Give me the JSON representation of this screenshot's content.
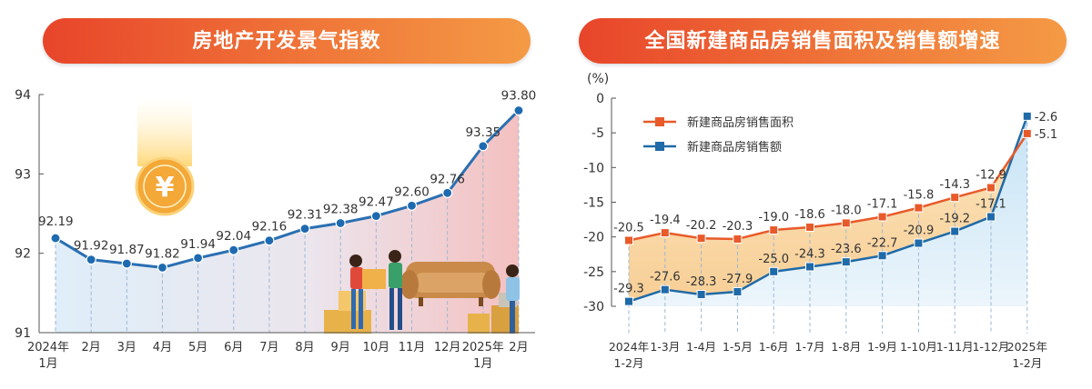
{
  "chart_data": [
    {
      "type": "line",
      "title": "房地产开发景气指数",
      "ylim": [
        91,
        94
      ],
      "yticks": [
        "91",
        "92",
        "93",
        "94"
      ],
      "categories": [
        [
          "2024年",
          "1月"
        ],
        [
          "2月"
        ],
        [
          "3月"
        ],
        [
          "4月"
        ],
        [
          "5月"
        ],
        [
          "6月"
        ],
        [
          "7月"
        ],
        [
          "8月"
        ],
        [
          "9月"
        ],
        [
          "10月"
        ],
        [
          "11月"
        ],
        [
          "12月"
        ],
        [
          "2025年",
          "1月"
        ],
        [
          "2月"
        ]
      ],
      "values": [
        92.19,
        91.92,
        91.87,
        91.82,
        91.94,
        92.04,
        92.16,
        92.31,
        92.38,
        92.47,
        92.6,
        92.76,
        93.35,
        93.8
      ],
      "labels": [
        "92.19",
        "91.92",
        "91.87",
        "91.82",
        "91.94",
        "92.04",
        "92.16",
        "92.31",
        "92.38",
        "92.47",
        "92.60",
        "92.76",
        "93.35",
        "93.80"
      ],
      "colors": {
        "line": "#2a6fb2",
        "point": "#1e6ab0",
        "fill_start": "#d9ebf8",
        "fill_end": "#f2b5b5",
        "guide": "#9bb7d4",
        "coin": "#f0a030"
      },
      "grid": false,
      "decorations": [
        "yuan-coin-icon",
        "movers-sofa-illustration"
      ]
    },
    {
      "type": "line",
      "title": "全国新建商品房销售面积及销售额增速",
      "unit": "(%)",
      "ylim": [
        -30,
        0
      ],
      "yticks": [
        "0",
        "-5",
        "-10",
        "-15",
        "-20",
        "-25",
        "-30"
      ],
      "categories": [
        [
          "2024年",
          "1-2月"
        ],
        [
          "1-3月"
        ],
        [
          "1-4月"
        ],
        [
          "1-5月"
        ],
        [
          "1-6月"
        ],
        [
          "1-7月"
        ],
        [
          "1-8月"
        ],
        [
          "1-9月"
        ],
        [
          "1-10月"
        ],
        [
          "1-11月"
        ],
        [
          "1-12月"
        ],
        [
          "2025年",
          "1-2月"
        ]
      ],
      "series": [
        {
          "name": "新建商品房销售面积",
          "color": "#e85a2a",
          "values": [
            -20.5,
            -19.4,
            -20.2,
            -20.3,
            -19.0,
            -18.6,
            -18.0,
            -17.1,
            -15.8,
            -14.3,
            -12.9,
            -5.1
          ],
          "labels": [
            "-20.5",
            "-19.4",
            "-20.2",
            "-20.3",
            "-19.0",
            "-18.6",
            "-18.0",
            "-17.1",
            "-15.8",
            "-14.3",
            "-12.9",
            "-5.1"
          ]
        },
        {
          "name": "新建商品房销售额",
          "color": "#1f6aa8",
          "values": [
            -29.3,
            -27.6,
            -28.3,
            -27.9,
            -25.0,
            -24.3,
            -23.6,
            -22.7,
            -20.9,
            -19.2,
            -17.1,
            -2.6
          ],
          "labels": [
            "-29.3",
            "-27.6",
            "-28.3",
            "-27.9",
            "-25.0",
            "-24.3",
            "-23.6",
            "-22.7",
            "-20.9",
            "-19.2",
            "-17.1",
            "-2.6"
          ]
        }
      ],
      "legend": "top-left",
      "grid": false
    }
  ]
}
